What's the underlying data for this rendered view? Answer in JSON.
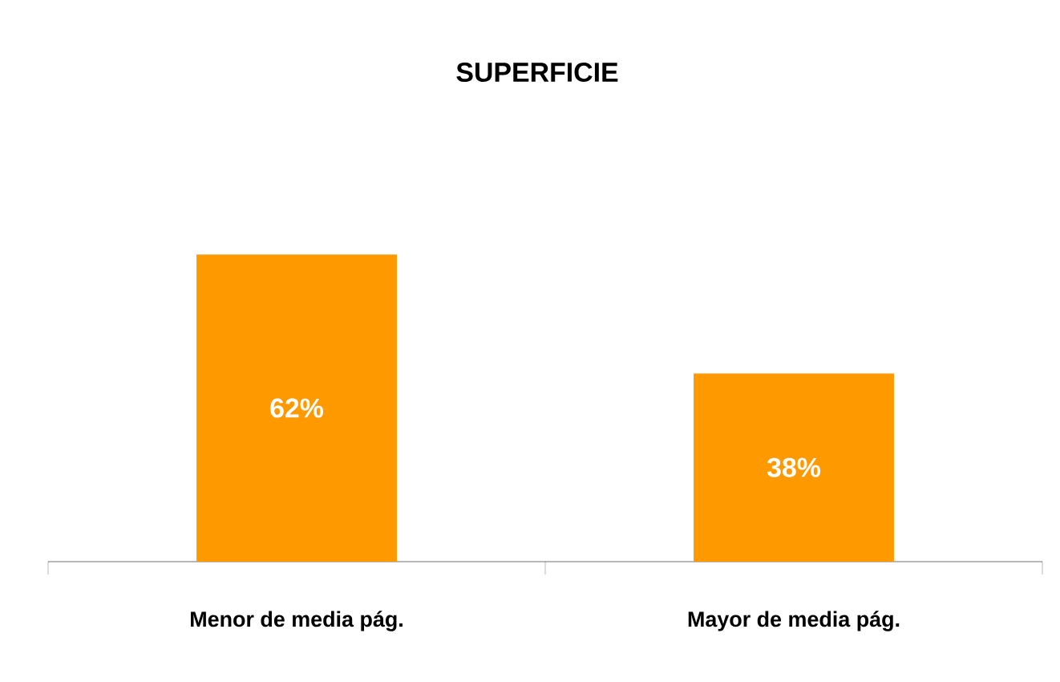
{
  "chart_data": {
    "type": "bar",
    "title": "SUPERFICIE",
    "categories": [
      "Menor de media pág.",
      "Mayor de media pág."
    ],
    "values": [
      62,
      38
    ],
    "value_labels": [
      "62%",
      "38%"
    ],
    "color": "#ff9900"
  }
}
